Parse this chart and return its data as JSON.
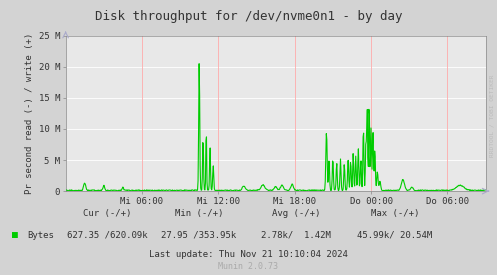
{
  "title": "Disk throughput for /dev/nvme0n1 - by day",
  "ylabel": "Pr second read (-) / write (+)",
  "bg_color": "#d3d3d3",
  "plot_bg_color": "#e8e8e8",
  "grid_color_h": "#ffffff",
  "grid_color_v": "#ffaaaa",
  "line_color": "#00cc00",
  "ylim": [
    0,
    25000000
  ],
  "yticks": [
    0,
    5000000,
    10000000,
    15000000,
    20000000,
    25000000
  ],
  "ytick_labels": [
    "0",
    "5 M",
    "10 M",
    "15 M",
    "20 M",
    "25 M"
  ],
  "xtick_labels": [
    "Mi 06:00",
    "Mi 12:00",
    "Mi 18:00",
    "Do 00:00",
    "Do 06:00"
  ],
  "legend_label": "Bytes",
  "cur_text": "Cur (-/+)",
  "cur_val": "627.35 /620.09k",
  "min_text": "Min (-/+)",
  "min_val": "27.95 /353.95k",
  "avg_text": "Avg (-/+)",
  "avg_val": "2.78k/  1.42M",
  "max_text": "Max (-/+)",
  "max_val": "45.99k/ 20.54M",
  "last_update": "Last update: Thu Nov 21 10:10:04 2024",
  "munin_version": "Munin 2.0.73",
  "rrdtool_text": "RRDTOOL / TOBI OETIKER",
  "total_hours": 33,
  "num_points": 800
}
